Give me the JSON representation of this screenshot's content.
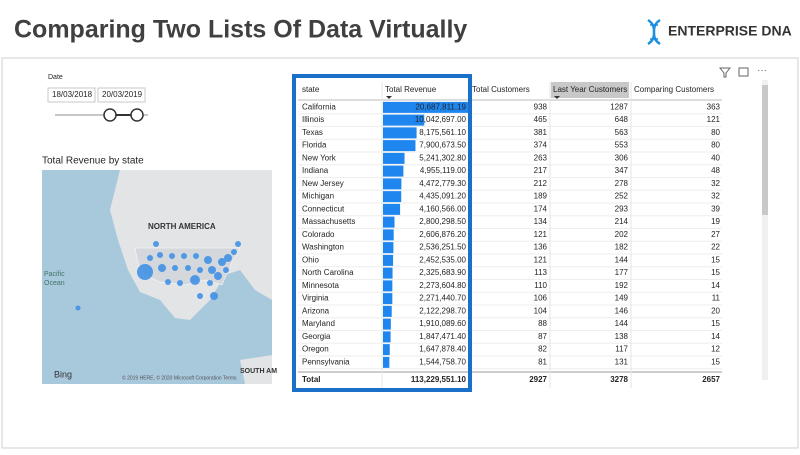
{
  "header": {
    "title": "Comparing Two Lists Of Data Virtually",
    "brand": "ENTERPRISE DNA"
  },
  "slicer": {
    "label": "Date",
    "start": "18/03/2018",
    "end": "20/03/2019"
  },
  "map": {
    "title": "Total Revenue by state",
    "continent": "NORTH AMERICA",
    "ocean": "Pacific Ocean",
    "south": "SOUTH AM",
    "provider": "Bing",
    "credits": "© 2019 HERE, © 2020 Microsoft Corporation Terms"
  },
  "table": {
    "columns": [
      "state",
      "Total Revenue",
      "Total Customers",
      "Last Year Customers",
      "Comparing Customers"
    ],
    "rows": [
      {
        "state": "California",
        "revenue": {
          "value": 20687811.19,
          "label": "20,687,811.19"
        },
        "customers": 938,
        "last_year": 1287,
        "comparing": 363
      },
      {
        "state": "Illinois",
        "revenue": {
          "value": 10042697.0,
          "label": "10,042,697.00"
        },
        "customers": 465,
        "last_year": 648,
        "comparing": 121
      },
      {
        "state": "Texas",
        "revenue": {
          "value": 8175561.1,
          "label": "8,175,561.10"
        },
        "customers": 381,
        "last_year": 563,
        "comparing": 80
      },
      {
        "state": "Florida",
        "revenue": {
          "value": 7900673.5,
          "label": "7,900,673.50"
        },
        "customers": 374,
        "last_year": 553,
        "comparing": 80
      },
      {
        "state": "New York",
        "revenue": {
          "value": 5241302.8,
          "label": "5,241,302.80"
        },
        "customers": 263,
        "last_year": 306,
        "comparing": 40
      },
      {
        "state": "Indiana",
        "revenue": {
          "value": 4955119.0,
          "label": "4,955,119.00"
        },
        "customers": 217,
        "last_year": 347,
        "comparing": 48
      },
      {
        "state": "New Jersey",
        "revenue": {
          "value": 4472779.3,
          "label": "4,472,779.30"
        },
        "customers": 212,
        "last_year": 278,
        "comparing": 32
      },
      {
        "state": "Michigan",
        "revenue": {
          "value": 4435091.2,
          "label": "4,435,091.20"
        },
        "customers": 189,
        "last_year": 252,
        "comparing": 32
      },
      {
        "state": "Connecticut",
        "revenue": {
          "value": 4160566.0,
          "label": "4,160,566.00"
        },
        "customers": 174,
        "last_year": 293,
        "comparing": 39
      },
      {
        "state": "Massachusetts",
        "revenue": {
          "value": 2800298.5,
          "label": "2,800,298.50"
        },
        "customers": 134,
        "last_year": 214,
        "comparing": 19
      },
      {
        "state": "Colorado",
        "revenue": {
          "value": 2606876.2,
          "label": "2,606,876.20"
        },
        "customers": 121,
        "last_year": 202,
        "comparing": 27
      },
      {
        "state": "Washington",
        "revenue": {
          "value": 2536251.5,
          "label": "2,536,251.50"
        },
        "customers": 136,
        "last_year": 182,
        "comparing": 22
      },
      {
        "state": "Ohio",
        "revenue": {
          "value": 2452535.0,
          "label": "2,452,535.00"
        },
        "customers": 121,
        "last_year": 144,
        "comparing": 15
      },
      {
        "state": "North Carolina",
        "revenue": {
          "value": 2325683.9,
          "label": "2,325,683.90"
        },
        "customers": 113,
        "last_year": 177,
        "comparing": 15
      },
      {
        "state": "Minnesota",
        "revenue": {
          "value": 2273604.8,
          "label": "2,273,604.80"
        },
        "customers": 110,
        "last_year": 192,
        "comparing": 14
      },
      {
        "state": "Virginia",
        "revenue": {
          "value": 2271440.7,
          "label": "2,271,440.70"
        },
        "customers": 106,
        "last_year": 149,
        "comparing": 11
      },
      {
        "state": "Arizona",
        "revenue": {
          "value": 2122298.7,
          "label": "2,122,298.70"
        },
        "customers": 104,
        "last_year": 146,
        "comparing": 20
      },
      {
        "state": "Maryland",
        "revenue": {
          "value": 1910089.6,
          "label": "1,910,089.60"
        },
        "customers": 88,
        "last_year": 144,
        "comparing": 15
      },
      {
        "state": "Georgia",
        "revenue": {
          "value": 1847471.4,
          "label": "1,847,471.40"
        },
        "customers": 87,
        "last_year": 138,
        "comparing": 14
      },
      {
        "state": "Oregon",
        "revenue": {
          "value": 1647878.4,
          "label": "1,647,878.40"
        },
        "customers": 82,
        "last_year": 117,
        "comparing": 12
      },
      {
        "state": "Pennsylvania",
        "revenue": {
          "value": 1544758.7,
          "label": "1,544,758.70"
        },
        "customers": 81,
        "last_year": 131,
        "comparing": 15
      }
    ],
    "total": {
      "state": "Total",
      "revenue": "113,229,551.10",
      "customers": 2927,
      "last_year": 3278,
      "comparing": 2657
    }
  }
}
